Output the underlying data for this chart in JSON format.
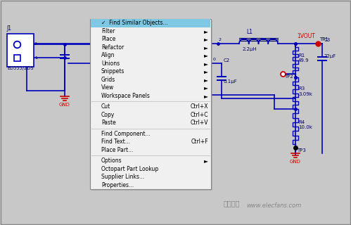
{
  "bg_color": "#c8c8c8",
  "schematic_bg": "#ffffff",
  "wire_color": "#0000bb",
  "ic_fill": "#ffffaa",
  "red_color": "#cc0000",
  "dark_blue": "#000066",
  "black": "#000000",
  "menu_bg": "#f0f0f0",
  "menu_highlight": "#7ec8e3",
  "menu_separator": "#cccccc",
  "menu_items": [
    {
      "text": "✓  Find Similar Objects...",
      "highlight": true,
      "shortcut": "",
      "sep_before": false
    },
    {
      "text": "Filter",
      "highlight": false,
      "shortcut": "►",
      "sep_before": false
    },
    {
      "text": "Place",
      "highlight": false,
      "shortcut": "►",
      "sep_before": false
    },
    {
      "text": "Refactor",
      "highlight": false,
      "shortcut": "►",
      "sep_before": false
    },
    {
      "text": "Align",
      "highlight": false,
      "shortcut": "►",
      "sep_before": false
    },
    {
      "text": "Unions",
      "highlight": false,
      "shortcut": "►",
      "sep_before": false
    },
    {
      "text": "Snippets",
      "highlight": false,
      "shortcut": "►",
      "sep_before": false
    },
    {
      "text": "Grids",
      "highlight": false,
      "shortcut": "►",
      "sep_before": false
    },
    {
      "text": "View",
      "highlight": false,
      "shortcut": "►",
      "sep_before": false
    },
    {
      "text": "Workspace Panels",
      "highlight": false,
      "shortcut": "►",
      "sep_before": false
    },
    {
      "text": "Cut",
      "highlight": false,
      "shortcut": "Ctrl+X",
      "sep_before": true
    },
    {
      "text": "Copy",
      "highlight": false,
      "shortcut": "Ctrl+C",
      "sep_before": false
    },
    {
      "text": "Paste",
      "highlight": false,
      "shortcut": "Ctrl+V",
      "sep_before": false
    },
    {
      "text": "Find Component...",
      "highlight": false,
      "shortcut": "",
      "sep_before": true
    },
    {
      "text": "Find Text...",
      "highlight": false,
      "shortcut": "Ctrl+F",
      "sep_before": false
    },
    {
      "text": "Place Part...",
      "highlight": false,
      "shortcut": "",
      "sep_before": false
    },
    {
      "text": "Options",
      "highlight": false,
      "shortcut": "►",
      "sep_before": true
    },
    {
      "text": "Octopart Part Lookup",
      "highlight": false,
      "shortcut": "",
      "sep_before": false
    },
    {
      "text": "Supplier Links...",
      "highlight": false,
      "shortcut": "",
      "sep_before": false
    },
    {
      "text": "Properties...",
      "highlight": false,
      "shortcut": "",
      "sep_before": false
    }
  ],
  "watermark_text": "www.elecfans.com",
  "watermark_logo": "电子屠全"
}
